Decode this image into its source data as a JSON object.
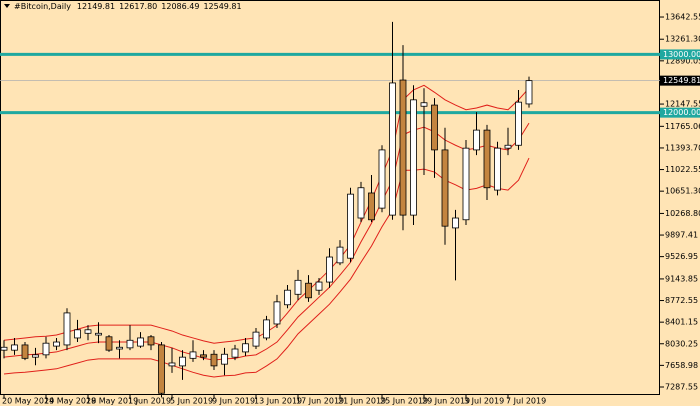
{
  "chart_data": {
    "type": "candlestick",
    "title": "#Bitcoin,Daily",
    "ohlc_labels": [
      "12149.81",
      "12617.80",
      "12086.49",
      "12549.81"
    ],
    "categories": [
      "20 May 2019",
      null,
      null,
      null,
      "24 May 2019",
      null,
      null,
      null,
      "28 May 2019",
      null,
      null,
      null,
      "1 Jun 2019",
      null,
      null,
      null,
      "5 Jun 2019",
      null,
      null,
      null,
      "9 Jun 2019",
      null,
      null,
      null,
      "13 Jun 2019",
      null,
      null,
      null,
      "17 Jun 2019",
      null,
      null,
      null,
      "21 Jun 2019",
      null,
      null,
      null,
      "25 Jun 2019",
      null,
      null,
      null,
      "29 Jun 2019",
      null,
      null,
      null,
      "3 Jul 2019",
      null,
      null,
      null,
      "7 Jul 2019",
      null,
      null
    ],
    "open": [
      7920,
      7920,
      8010,
      7800,
      7840,
      7990,
      8010,
      8130,
      8210,
      8180,
      8150,
      7940,
      7960,
      7990,
      8150,
      8010,
      7650,
      7650,
      7780,
      7840,
      7850,
      7680,
      7800,
      7890,
      7990,
      8130,
      8370,
      8700,
      8880,
      9070,
      8950,
      9090,
      9420,
      9500,
      10190,
      10620,
      10360,
      10240,
      12560,
      10240,
      12110,
      12130,
      11360,
      10020,
      10160,
      11360,
      11700,
      10670,
      11390,
      11440,
      12149.81
    ],
    "high": [
      8090,
      8130,
      8060,
      7960,
      8150,
      8130,
      8640,
      8440,
      8350,
      8400,
      8180,
      8090,
      8350,
      8230,
      8180,
      8060,
      7960,
      7920,
      8090,
      7920,
      7920,
      7960,
      8010,
      8130,
      8300,
      8510,
      8870,
      9040,
      9300,
      9210,
      9160,
      9670,
      9810,
      10710,
      10810,
      10930,
      11440,
      13560,
      13160,
      12470,
      12420,
      12250,
      11740,
      10330,
      11530,
      12010,
      11790,
      11500,
      11740,
      12390,
      12617.8
    ],
    "low": [
      7780,
      7840,
      7750,
      7660,
      7780,
      7920,
      7920,
      8060,
      8090,
      8040,
      7890,
      7780,
      7920,
      7960,
      7920,
      7110,
      7530,
      7410,
      7720,
      7750,
      7580,
      7490,
      7750,
      7820,
      7940,
      8090,
      8300,
      8640,
      8780,
      8750,
      8870,
      8990,
      9380,
      9430,
      10120,
      10120,
      10290,
      10160,
      9980,
      10070,
      10930,
      10880,
      9730,
      9120,
      10070,
      11270,
      10500,
      10580,
      11270,
      11360,
      12086.49
    ],
    "close": [
      7970,
      8010,
      7780,
      7840,
      8040,
      8060,
      8560,
      8270,
      8270,
      8210,
      7920,
      7970,
      8090,
      8130,
      8010,
      7180,
      7700,
      7800,
      7890,
      7800,
      7650,
      7850,
      7940,
      8030,
      8230,
      8440,
      8750,
      8950,
      9120,
      8820,
      9090,
      9520,
      9690,
      10600,
      10710,
      10160,
      11360,
      12510,
      10240,
      12220,
      12170,
      11360,
      10050,
      10190,
      11390,
      11700,
      10710,
      11390,
      11440,
      12180,
      12549.81
    ],
    "up_color": "#ffffff",
    "down_color": "#c3843f",
    "wick_color": "#000000",
    "overlays": [
      {
        "color": "#e0201a",
        "values": [
          8090,
          8110,
          8130,
          8150,
          8160,
          8180,
          8230,
          8280,
          8330,
          8350,
          8350,
          8350,
          8350,
          8350,
          8350,
          8300,
          8250,
          8180,
          8130,
          8080,
          8040,
          8060,
          8080,
          8110,
          8130,
          8230,
          8350,
          8560,
          8780,
          8950,
          9120,
          9300,
          9500,
          9730,
          10120,
          10500,
          10930,
          11360,
          12220,
          12390,
          12470,
          12350,
          12220,
          12130,
          12050,
          12080,
          12130,
          12080,
          12050,
          12220,
          12420
        ]
      },
      {
        "color": "#e0201a",
        "values": [
          7800,
          7820,
          7840,
          7850,
          7870,
          7890,
          7940,
          7990,
          8040,
          8060,
          8060,
          8060,
          8060,
          8060,
          8060,
          8010,
          7960,
          7890,
          7840,
          7780,
          7750,
          7770,
          7780,
          7820,
          7840,
          7940,
          8060,
          8270,
          8490,
          8660,
          8830,
          9000,
          9210,
          9430,
          9780,
          10100,
          10480,
          10840,
          11620,
          11700,
          11750,
          11670,
          11530,
          11440,
          11360,
          11390,
          11440,
          11390,
          11360,
          11530,
          11820
        ]
      },
      {
        "color": "#e0201a",
        "values": [
          7510,
          7530,
          7540,
          7560,
          7580,
          7600,
          7650,
          7700,
          7750,
          7770,
          7770,
          7770,
          7770,
          7770,
          7770,
          7720,
          7660,
          7600,
          7540,
          7490,
          7460,
          7480,
          7490,
          7530,
          7540,
          7650,
          7770,
          7970,
          8200,
          8370,
          8540,
          8710,
          8920,
          9140,
          9430,
          9710,
          10040,
          10330,
          11010,
          11010,
          11030,
          10980,
          10840,
          10760,
          10670,
          10700,
          10760,
          10700,
          10670,
          10840,
          11220
        ]
      }
    ],
    "levels": [
      {
        "value": 13000,
        "label": "13000.00",
        "color": "#1fa8a0"
      },
      {
        "value": 12000,
        "label": "12000.00",
        "color": "#1fa8a0"
      }
    ],
    "last_price": {
      "value": 12549.81,
      "label": "12549.81"
    },
    "ylim": [
      7150,
      13935
    ],
    "yticks": [
      {
        "value": 13642.55,
        "label": "13642.55"
      },
      {
        "value": 13261.3,
        "label": "13261.30"
      },
      {
        "value": 12890.05,
        "label": "12890.05"
      },
      {
        "value": 12147.55,
        "label": "12147.55"
      },
      {
        "value": 11765.06,
        "label": "11765.06"
      },
      {
        "value": 11393.7,
        "label": "11393.70"
      },
      {
        "value": 11022.55,
        "label": "11022.55"
      },
      {
        "value": 10651.3,
        "label": "10651.30"
      },
      {
        "value": 10268.8,
        "label": "10268.80"
      },
      {
        "value": 9897.41,
        "label": "9897.41"
      },
      {
        "value": 9526.95,
        "label": "9526.95"
      },
      {
        "value": 9143.85,
        "label": "9143.85"
      },
      {
        "value": 8772.55,
        "label": "8772.55"
      },
      {
        "value": 8401.15,
        "label": "8401.15"
      },
      {
        "value": 8030.25,
        "label": "8030.25"
      },
      {
        "value": 7658.98,
        "label": "7658.98"
      },
      {
        "value": 7287.55,
        "label": "7287.55"
      }
    ],
    "grid": false
  }
}
